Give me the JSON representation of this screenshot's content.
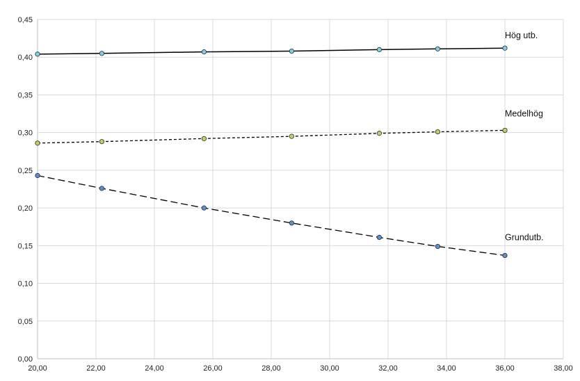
{
  "chart_data": {
    "type": "line",
    "title": "",
    "xlabel": "",
    "ylabel": "",
    "xlim": [
      20,
      38
    ],
    "ylim": [
      0,
      0.45
    ],
    "grid": true,
    "x_ticks": [
      "20,00",
      "22,00",
      "24,00",
      "26,00",
      "28,00",
      "30,00",
      "32,00",
      "34,00",
      "36,00",
      "38,00"
    ],
    "y_ticks": [
      "0,00",
      "0,05",
      "0,10",
      "0,15",
      "0,20",
      "0,25",
      "0,30",
      "0,35",
      "0,40",
      "0,45"
    ],
    "series": [
      {
        "name": "Hög utb.",
        "line_style": "solid",
        "line_color": "#000000",
        "marker_color": "#7fd0e4",
        "points": [
          [
            20.0,
            0.404
          ],
          [
            22.2,
            0.405
          ],
          [
            25.7,
            0.407
          ],
          [
            28.7,
            0.408
          ],
          [
            31.7,
            0.41
          ],
          [
            33.7,
            0.411
          ],
          [
            36.0,
            0.412
          ]
        ]
      },
      {
        "name": "Medelhög",
        "line_style": "dotted",
        "line_color": "#000000",
        "marker_color": "#c9cc66",
        "points": [
          [
            20.0,
            0.286
          ],
          [
            22.2,
            0.288
          ],
          [
            25.7,
            0.292
          ],
          [
            28.7,
            0.295
          ],
          [
            31.7,
            0.299
          ],
          [
            33.7,
            0.301
          ],
          [
            36.0,
            0.303
          ]
        ]
      },
      {
        "name": "Grundutb.",
        "line_style": "dashed",
        "line_color": "#000000",
        "marker_color": "#5b8fd3",
        "points": [
          [
            20.0,
            0.243
          ],
          [
            22.2,
            0.226
          ],
          [
            25.7,
            0.2
          ],
          [
            28.7,
            0.18
          ],
          [
            31.7,
            0.161
          ],
          [
            33.7,
            0.149
          ],
          [
            36.0,
            0.137
          ]
        ]
      }
    ]
  }
}
